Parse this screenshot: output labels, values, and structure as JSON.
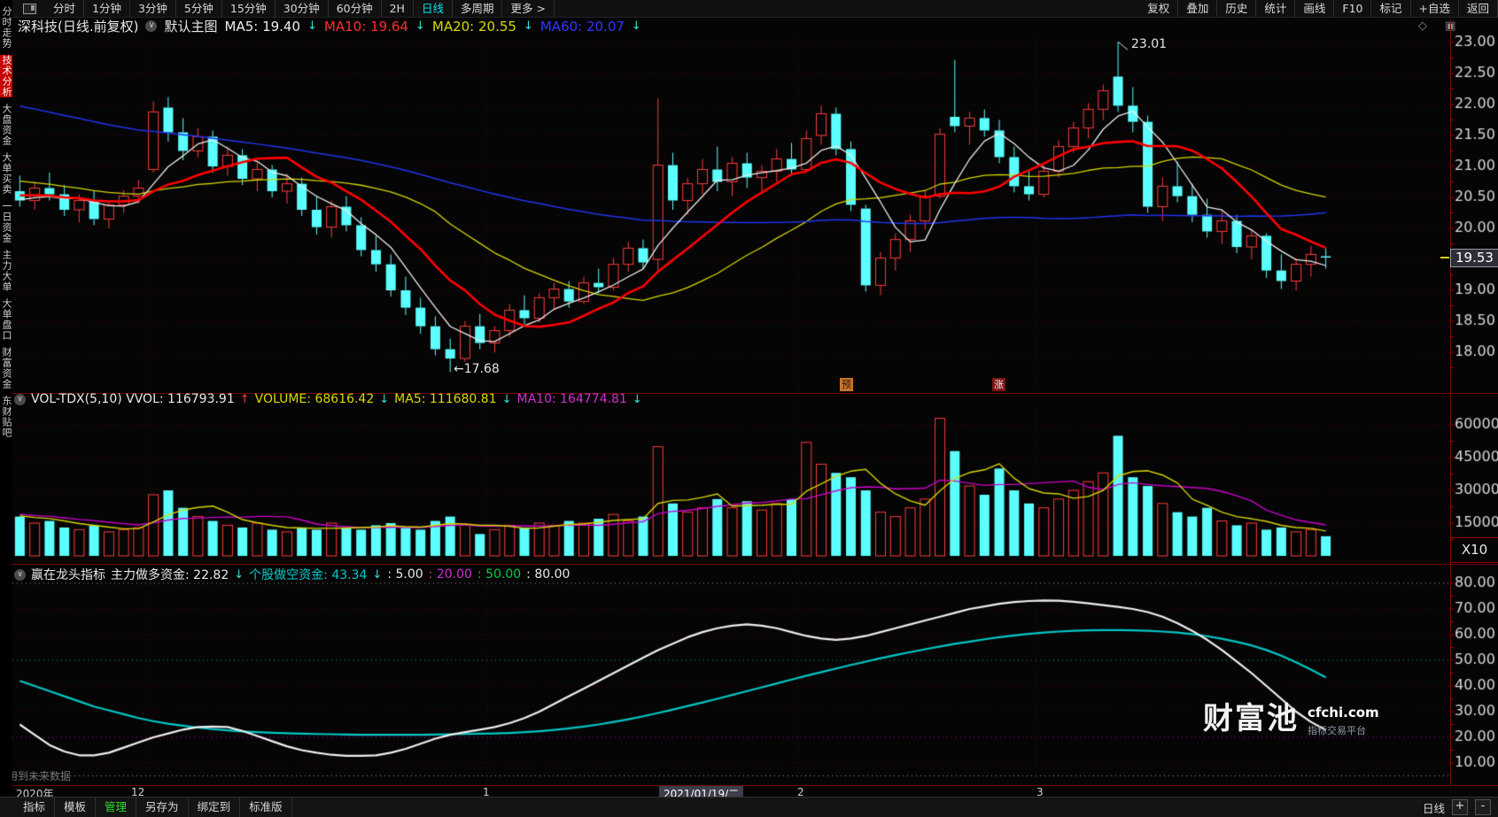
{
  "top_toolbar": {
    "periods": [
      "分时",
      "1分钟",
      "3分钟",
      "5分钟",
      "15分钟",
      "30分钟",
      "60分钟",
      "2H",
      "日线",
      "多周期",
      "更多 >"
    ],
    "active_period": "日线",
    "right_tools": [
      "复权",
      "叠加",
      "历史",
      "统计",
      "画线",
      "F10",
      "标记",
      "+自选",
      "返回"
    ]
  },
  "title_row": {
    "symbol_title": "深科技(日线.前复权)",
    "overlay_label": "默认主图",
    "ma_items": [
      {
        "text": "MA5: 19.40",
        "dir": "↓"
      },
      {
        "text": "MA10: 19.64",
        "dir": "↓"
      },
      {
        "text": "MA20: 20.55",
        "dir": "↓"
      },
      {
        "text": "MA60: 20.07",
        "dir": "↓"
      }
    ],
    "corner_icons": "◇ ▣"
  },
  "sidebar": {
    "items": [
      "分时走势",
      "技术分析",
      "大盘资金",
      "大单买卖",
      "一日资金",
      "主力大单",
      "大单盘口",
      "财富资金",
      "东财贴吧"
    ],
    "active": "技术分析"
  },
  "main_panel": {
    "price_badge": "19.53",
    "high_annotation": "23.01",
    "low_annotation": "←17.68",
    "markers": [
      {
        "text": "预"
      },
      {
        "text": "涨"
      }
    ]
  },
  "volume_panel": {
    "title": "VOL-TDX(5,10) VVOL: 116793.91",
    "title_dir": "↑",
    "volume_text": "VOLUME: 68616.42",
    "volume_dir": "↓",
    "ma5_text": "MA5: 111680.81",
    "ma5_dir": "↓",
    "ma10_text": "MA10: 164774.81",
    "ma10_dir": "↓",
    "unit_label": "X10"
  },
  "indicator_panel": {
    "title": "赢在龙头指标",
    "long_text": "主力做多资金: 22.82",
    "long_dir": "↓",
    "short_text": "个股做空资金: 43.34",
    "short_dir": "↓",
    "t1": ": 5.00",
    "t2": ": 20.00",
    "t3": ": 50.00",
    "t4": ": 80.00"
  },
  "future_note": "用到未来数据",
  "watermark": {
    "brand": "财富池",
    "domain": "cfchi.com",
    "tagline": "指标交易平台"
  },
  "timeline": {
    "labels": [
      "2020年",
      "12",
      "1",
      "2021/01/19/二",
      "2",
      "3"
    ]
  },
  "bottom_toolbar": {
    "items": [
      "指标",
      "模板",
      "管理",
      "另存为",
      "绑定到",
      "标准版"
    ],
    "right_period": "日线",
    "zoom_in": "+",
    "zoom_out": "-"
  },
  "chart_data": {
    "type": "candlestick",
    "symbol": "深科技",
    "period": "日线 (前复权)",
    "x_month_ticks": [
      {
        "idx": 9,
        "label": "12"
      },
      {
        "idx": 32,
        "label": "1"
      },
      {
        "idx": 53,
        "label": "2"
      },
      {
        "idx": 69,
        "label": "3"
      }
    ],
    "main": {
      "ylim": [
        17.6,
        23.15
      ],
      "yticks": [
        23.0,
        22.5,
        22.0,
        21.5,
        21.0,
        20.5,
        20.0,
        19.5,
        19.0,
        18.5,
        18.0
      ],
      "last_price": 19.53,
      "high_annotation": 23.01,
      "low_annotation": 17.68,
      "ma_colors": {
        "ma5": "#ededed",
        "ma10": "#ff0000",
        "ma20": "#d6d600",
        "ma60": "#2233ee"
      },
      "up_color": "#ff3b3b",
      "down_color": "#5cffff",
      "candles": [
        [
          20.6,
          20.85,
          20.35,
          20.45
        ],
        [
          20.45,
          20.75,
          20.3,
          20.65
        ],
        [
          20.65,
          20.9,
          20.45,
          20.55
        ],
        [
          20.55,
          20.7,
          20.2,
          20.3
        ],
        [
          20.3,
          20.55,
          20.1,
          20.45
        ],
        [
          20.45,
          20.6,
          20.05,
          20.15
        ],
        [
          20.15,
          20.45,
          20.0,
          20.38
        ],
        [
          20.38,
          20.62,
          20.25,
          20.52
        ],
        [
          20.52,
          20.78,
          20.4,
          20.65
        ],
        [
          20.95,
          22.05,
          20.9,
          21.88
        ],
        [
          21.95,
          22.12,
          21.4,
          21.55
        ],
        [
          21.55,
          21.78,
          21.1,
          21.25
        ],
        [
          21.25,
          21.62,
          21.15,
          21.48
        ],
        [
          21.48,
          21.58,
          20.9,
          21.0
        ],
        [
          21.0,
          21.32,
          20.85,
          21.18
        ],
        [
          21.18,
          21.28,
          20.7,
          20.8
        ],
        [
          20.8,
          21.08,
          20.6,
          20.95
        ],
        [
          20.95,
          21.02,
          20.5,
          20.6
        ],
        [
          20.6,
          20.88,
          20.4,
          20.72
        ],
        [
          20.72,
          20.82,
          20.2,
          20.3
        ],
        [
          20.3,
          20.52,
          19.9,
          20.02
        ],
        [
          20.02,
          20.45,
          19.85,
          20.35
        ],
        [
          20.35,
          20.52,
          19.95,
          20.05
        ],
        [
          20.05,
          20.18,
          19.55,
          19.65
        ],
        [
          19.65,
          19.88,
          19.3,
          19.42
        ],
        [
          19.42,
          19.58,
          18.9,
          19.0
        ],
        [
          19.0,
          19.22,
          18.6,
          18.72
        ],
        [
          18.72,
          18.88,
          18.3,
          18.42
        ],
        [
          18.42,
          18.58,
          17.95,
          18.05
        ],
        [
          18.05,
          18.22,
          17.68,
          17.9
        ],
        [
          17.9,
          18.5,
          17.85,
          18.42
        ],
        [
          18.42,
          18.62,
          18.05,
          18.15
        ],
        [
          18.15,
          18.42,
          18.0,
          18.35
        ],
        [
          18.35,
          18.78,
          18.25,
          18.68
        ],
        [
          18.68,
          18.92,
          18.45,
          18.55
        ],
        [
          18.55,
          18.95,
          18.48,
          18.88
        ],
        [
          18.88,
          19.12,
          18.7,
          19.02
        ],
        [
          19.02,
          19.15,
          18.72,
          18.82
        ],
        [
          18.82,
          19.22,
          18.78,
          19.12
        ],
        [
          19.12,
          19.35,
          18.95,
          19.05
        ],
        [
          19.05,
          19.52,
          19.0,
          19.42
        ],
        [
          19.42,
          19.78,
          19.3,
          19.68
        ],
        [
          19.68,
          19.82,
          19.35,
          19.45
        ],
        [
          19.5,
          22.1,
          19.3,
          21.02
        ],
        [
          21.02,
          21.22,
          20.3,
          20.45
        ],
        [
          20.45,
          20.82,
          20.22,
          20.72
        ],
        [
          20.72,
          21.12,
          20.55,
          20.95
        ],
        [
          20.95,
          21.32,
          20.6,
          20.75
        ],
        [
          20.75,
          21.15,
          20.52,
          21.05
        ],
        [
          21.05,
          21.22,
          20.65,
          20.82
        ],
        [
          20.82,
          21.02,
          20.55,
          20.92
        ],
        [
          20.92,
          21.28,
          20.75,
          21.12
        ],
        [
          21.12,
          21.38,
          20.85,
          20.95
        ],
        [
          20.95,
          21.58,
          20.9,
          21.45
        ],
        [
          21.5,
          21.98,
          21.35,
          21.85
        ],
        [
          21.85,
          21.95,
          21.18,
          21.28
        ],
        [
          21.28,
          21.4,
          20.28,
          20.38
        ],
        [
          20.32,
          20.38,
          18.98,
          19.08
        ],
        [
          19.08,
          19.62,
          18.92,
          19.52
        ],
        [
          19.52,
          19.92,
          19.32,
          19.82
        ],
        [
          19.82,
          20.22,
          19.62,
          20.12
        ],
        [
          20.12,
          20.62,
          19.98,
          20.52
        ],
        [
          20.52,
          21.62,
          20.48,
          21.52
        ],
        [
          21.8,
          22.72,
          21.55,
          21.65
        ],
        [
          21.65,
          21.88,
          21.35,
          21.78
        ],
        [
          21.78,
          21.92,
          21.48,
          21.58
        ],
        [
          21.58,
          21.75,
          21.05,
          21.15
        ],
        [
          21.15,
          21.32,
          20.58,
          20.68
        ],
        [
          20.68,
          20.92,
          20.45,
          20.55
        ],
        [
          20.55,
          21.02,
          20.5,
          20.92
        ],
        [
          20.92,
          21.42,
          20.82,
          21.32
        ],
        [
          21.32,
          21.72,
          21.22,
          21.62
        ],
        [
          21.62,
          22.02,
          21.45,
          21.92
        ],
        [
          21.92,
          22.32,
          21.75,
          22.22
        ],
        [
          22.45,
          23.01,
          21.88,
          21.98
        ],
        [
          21.98,
          22.28,
          21.55,
          21.72
        ],
        [
          21.72,
          21.82,
          20.25,
          20.35
        ],
        [
          20.35,
          20.82,
          20.12,
          20.68
        ],
        [
          20.68,
          21.08,
          20.42,
          20.52
        ],
        [
          20.52,
          20.72,
          20.1,
          20.22
        ],
        [
          20.22,
          20.48,
          19.85,
          19.95
        ],
        [
          19.95,
          20.28,
          19.75,
          20.12
        ],
        [
          20.12,
          20.22,
          19.6,
          19.7
        ],
        [
          19.7,
          19.98,
          19.5,
          19.88
        ],
        [
          19.88,
          19.92,
          19.2,
          19.32
        ],
        [
          19.32,
          19.58,
          19.02,
          19.15
        ],
        [
          19.15,
          19.52,
          19.0,
          19.42
        ],
        [
          19.42,
          19.72,
          19.22,
          19.58
        ],
        [
          19.55,
          19.68,
          19.35,
          19.53
        ]
      ]
    },
    "volume": {
      "yticks": [
        60000,
        45000,
        30000,
        15000
      ],
      "unit": "X10",
      "ma_colors": {
        "ma5": "#d6d600",
        "ma10": "#cc00cc"
      },
      "values": [
        18000,
        15000,
        16000,
        13000,
        12000,
        14000,
        11000,
        12000,
        13000,
        28000,
        30000,
        22000,
        18000,
        16000,
        14000,
        13000,
        15000,
        12000,
        11000,
        13000,
        12000,
        15000,
        13000,
        12000,
        14000,
        15000,
        13000,
        12000,
        16000,
        18000,
        14000,
        10000,
        12000,
        14000,
        13000,
        15000,
        14000,
        16000,
        15000,
        17000,
        19000,
        16000,
        18000,
        50000,
        24000,
        20000,
        22000,
        26000,
        22000,
        25000,
        21000,
        24000,
        26000,
        52000,
        42000,
        38000,
        36000,
        30000,
        20000,
        18000,
        22000,
        26000,
        63000,
        48000,
        32000,
        28000,
        40000,
        30000,
        24000,
        22000,
        26000,
        30000,
        34000,
        38000,
        55000,
        36000,
        32000,
        24000,
        20000,
        18000,
        22000,
        16000,
        14000,
        15000,
        12000,
        13000,
        11000,
        12000,
        9000
      ]
    },
    "indicator": {
      "yticks": [
        80,
        70,
        60,
        50,
        40,
        30,
        20,
        10
      ],
      "thresholds": [
        5,
        20,
        50,
        80
      ],
      "series": [
        {
          "name": "主力做多资金",
          "color": "#f0f0f0",
          "values": [
            25,
            21,
            17,
            14.5,
            13,
            13,
            14,
            16,
            18,
            20,
            21.5,
            23,
            24,
            24.2,
            24,
            22.5,
            20.5,
            18.5,
            16.5,
            15,
            14,
            13.2,
            12.8,
            12.8,
            13,
            14,
            15.5,
            17.5,
            19.5,
            21,
            22,
            23,
            24,
            25.5,
            27.5,
            30,
            33,
            36,
            39,
            42,
            45,
            48,
            51,
            54,
            56.5,
            59,
            61,
            62.5,
            63.5,
            64,
            63.5,
            62.5,
            61,
            59.5,
            58.5,
            58,
            58.5,
            59.5,
            61,
            62.5,
            64,
            65.5,
            67,
            68.5,
            70,
            71,
            72,
            72.7,
            73.1,
            73.3,
            73.2,
            72.8,
            72.2,
            71.5,
            70.8,
            70,
            68.8,
            67,
            64.5,
            61.5,
            58,
            54,
            49.5,
            45,
            40,
            35,
            30,
            26,
            22.82
          ]
        },
        {
          "name": "个股做空资金",
          "color": "#00c8c8",
          "values": [
            42,
            40,
            38,
            36,
            34,
            32,
            30.5,
            29,
            27.5,
            26.3,
            25.3,
            24.5,
            23.8,
            23.2,
            22.7,
            22.3,
            22,
            21.8,
            21.6,
            21.4,
            21.3,
            21.2,
            21.1,
            21,
            21,
            21,
            21,
            21,
            21.1,
            21.2,
            21.3,
            21.4,
            21.5,
            21.7,
            22,
            22.4,
            22.9,
            23.5,
            24.2,
            25,
            26,
            27,
            28.2,
            29.5,
            30.8,
            32.2,
            33.6,
            35,
            36.5,
            38,
            39.5,
            41,
            42.5,
            44,
            45.4,
            46.8,
            48.2,
            49.5,
            50.8,
            52,
            53.2,
            54.3,
            55.4,
            56.4,
            57.3,
            58.2,
            59,
            59.7,
            60.3,
            60.8,
            61.2,
            61.5,
            61.7,
            61.8,
            61.8,
            61.7,
            61.5,
            61.2,
            60.8,
            60.2,
            59.4,
            58.4,
            57.2,
            55.8,
            54,
            51.8,
            49.2,
            46.4,
            43.34
          ]
        }
      ]
    }
  }
}
